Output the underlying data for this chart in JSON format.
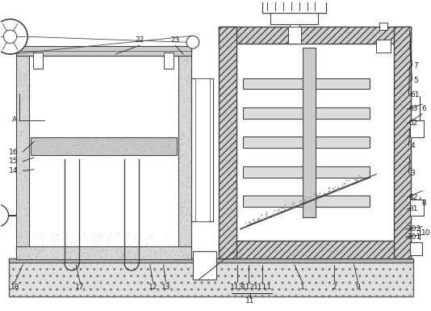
{
  "fig_width": 5.34,
  "fig_height": 3.85,
  "dpi": 100,
  "bg_color": "#ffffff",
  "lc": "#444444",
  "lw": 0.8,
  "ann_fs": 6.5,
  "ann_color": "#222222"
}
